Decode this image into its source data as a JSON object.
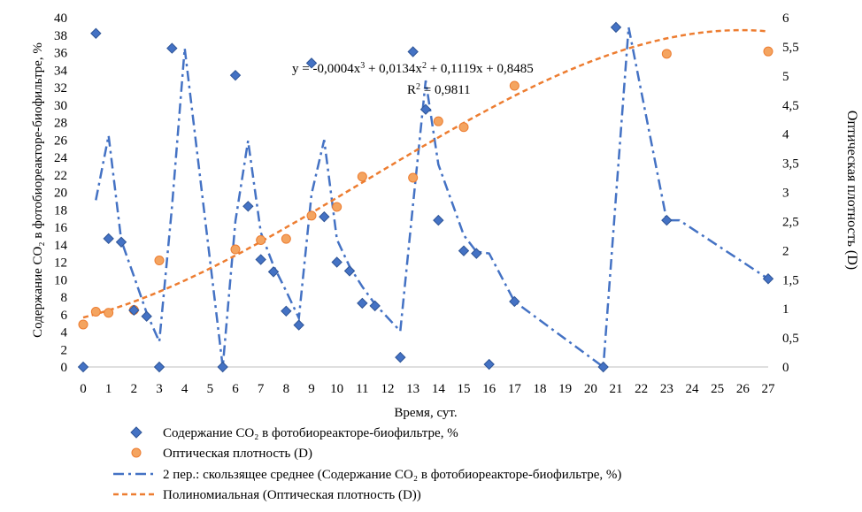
{
  "chart_data": {
    "type": "scatter",
    "xlabel": "Время, сут.",
    "ylabel_left": "Содержание CO₂ в фотобиореакторе-биофильтре, %",
    "ylabel_right": "Оптическая плотность (D)",
    "xlim": [
      0,
      27
    ],
    "ylim_left": [
      0,
      40
    ],
    "ylim_right": [
      0,
      6
    ],
    "x_ticks": [
      "0",
      "1",
      "2",
      "3",
      "4",
      "5",
      "6",
      "7",
      "8",
      "9",
      "10",
      "11",
      "12",
      "13",
      "14",
      "15",
      "16",
      "17",
      "18",
      "19",
      "20",
      "21",
      "22",
      "23",
      "24",
      "25",
      "26",
      "27"
    ],
    "y_left_ticks": [
      "0",
      "2",
      "4",
      "6",
      "8",
      "10",
      "12",
      "14",
      "16",
      "18",
      "20",
      "22",
      "24",
      "26",
      "28",
      "30",
      "32",
      "34",
      "36",
      "38",
      "40"
    ],
    "y_right_ticks": [
      "0",
      "0,5",
      "1",
      "1,5",
      "2",
      "2,5",
      "3",
      "3,5",
      "4",
      "4,5",
      "5",
      "5,5",
      "6"
    ],
    "grid": false,
    "legend_position": "bottom",
    "colors": {
      "co2": "#4472C4",
      "co2_edge": "#2F5597",
      "od": "#F4A460",
      "od_edge": "#ED7D31",
      "trend": "#ED7D31",
      "mavg": "#4472C4"
    },
    "series": [
      {
        "name": "Содержание CO₂ в фотобиореакторе-биофильтре, %",
        "kind": "scatter",
        "axis": "left",
        "marker": "diamond",
        "points": [
          [
            0,
            0
          ],
          [
            0.5,
            38.2
          ],
          [
            1,
            14.7
          ],
          [
            1.5,
            14.3
          ],
          [
            2,
            6.5
          ],
          [
            2.5,
            5.8
          ],
          [
            3,
            0
          ],
          [
            3.5,
            36.5
          ],
          [
            5.5,
            0
          ],
          [
            6,
            33.4
          ],
          [
            6.5,
            18.4
          ],
          [
            7,
            12.3
          ],
          [
            7.5,
            10.9
          ],
          [
            8,
            6.4
          ],
          [
            8.5,
            4.8
          ],
          [
            9,
            34.8
          ],
          [
            9.5,
            17.2
          ],
          [
            10,
            12
          ],
          [
            10.5,
            11
          ],
          [
            11,
            7.3
          ],
          [
            11.5,
            7
          ],
          [
            12.5,
            1.1
          ],
          [
            13,
            36.1
          ],
          [
            13.5,
            29.5
          ],
          [
            14,
            16.8
          ],
          [
            15,
            13.3
          ],
          [
            15.5,
            13
          ],
          [
            16,
            0.3
          ],
          [
            17,
            7.5
          ],
          [
            20.5,
            0
          ],
          [
            21,
            38.9
          ],
          [
            23,
            16.8
          ],
          [
            27,
            10.1
          ]
        ]
      },
      {
        "name": "Оптическая плотность (D)",
        "kind": "scatter",
        "axis": "right",
        "marker": "circle",
        "points": [
          [
            0,
            0.73
          ],
          [
            0.5,
            0.95
          ],
          [
            1,
            0.93
          ],
          [
            2,
            0.98
          ],
          [
            3,
            1.83
          ],
          [
            6,
            2.02
          ],
          [
            7,
            2.18
          ],
          [
            8,
            2.2
          ],
          [
            9,
            2.6
          ],
          [
            10,
            2.75
          ],
          [
            11,
            3.27
          ],
          [
            13,
            3.25
          ],
          [
            14,
            4.22
          ],
          [
            15,
            4.12
          ],
          [
            17,
            4.83
          ],
          [
            23,
            5.38
          ],
          [
            27,
            5.42
          ]
        ]
      },
      {
        "name": "2 пер.: скользящее среднее (Содержание CO₂ в фотобиореакторе-биофильтре, %)",
        "kind": "line",
        "axis": "left",
        "style": "dash-dot",
        "points": [
          [
            0.5,
            19.1
          ],
          [
            1,
            26.5
          ],
          [
            1.5,
            14.5
          ],
          [
            2,
            10.4
          ],
          [
            2.5,
            6.2
          ],
          [
            3,
            2.9
          ],
          [
            3.5,
            18.3
          ],
          [
            4,
            36.5
          ],
          [
            5.5,
            0
          ],
          [
            6,
            16.7
          ],
          [
            6.5,
            25.9
          ],
          [
            7,
            15.4
          ],
          [
            7.5,
            11.6
          ],
          [
            8,
            8.7
          ],
          [
            8.5,
            5.6
          ],
          [
            9,
            19.8
          ],
          [
            9.5,
            26
          ],
          [
            10,
            14.6
          ],
          [
            10.5,
            11.5
          ],
          [
            11,
            9.2
          ],
          [
            11.5,
            7.2
          ],
          [
            12.5,
            4.1
          ],
          [
            13,
            18.6
          ],
          [
            13.5,
            32.8
          ],
          [
            14,
            23.2
          ],
          [
            15,
            15.1
          ],
          [
            15.5,
            13.2
          ],
          [
            16,
            13
          ],
          [
            17,
            7.5
          ],
          [
            20.5,
            0
          ],
          [
            21,
            19.5
          ],
          [
            21.5,
            38.9
          ],
          [
            23,
            16.8
          ],
          [
            23.5,
            16.8
          ],
          [
            27,
            10.1
          ]
        ]
      },
      {
        "name": "Полиномиальная (Оптическая плотность (D))",
        "kind": "line",
        "axis": "right",
        "style": "dashed",
        "fit": {
          "type": "poly3",
          "coefficients": [
            -0.0004,
            0.0134,
            0.1119,
            0.8485
          ],
          "r2": 0.9811
        }
      }
    ],
    "annotations": [
      {
        "kind": "equation",
        "text_parts": [
          "y = -0,0004x",
          "3",
          " + 0,0134x",
          "2",
          " + 0,1119x + 0,8485"
        ]
      },
      {
        "kind": "r2",
        "text_parts": [
          "R",
          "2",
          " = 0,9811"
        ]
      }
    ]
  }
}
